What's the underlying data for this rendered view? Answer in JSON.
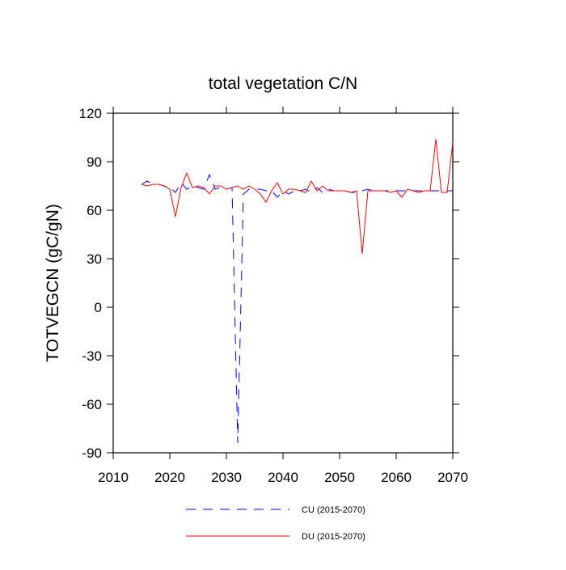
{
  "chart_data": {
    "type": "line",
    "title": "total vegetation C/N",
    "y_label": "TOTVEGCN  (gC/gN)",
    "x": [
      2015,
      2016,
      2017,
      2018,
      2019,
      2020,
      2021,
      2022,
      2023,
      2024,
      2025,
      2026,
      2027,
      2028,
      2029,
      2030,
      2031,
      2032,
      2033,
      2034,
      2035,
      2036,
      2037,
      2038,
      2039,
      2040,
      2041,
      2042,
      2043,
      2044,
      2045,
      2046,
      2047,
      2048,
      2049,
      2050,
      2051,
      2052,
      2053,
      2054,
      2055,
      2056,
      2057,
      2058,
      2059,
      2060,
      2061,
      2062,
      2063,
      2064,
      2065,
      2066,
      2067,
      2068,
      2069,
      2070
    ],
    "series": [
      {
        "name": "CU (2015-2070)",
        "color": "#0000ff",
        "dashed": true,
        "values": [
          76,
          78,
          76,
          76,
          75,
          74,
          71,
          77,
          73,
          75,
          74,
          73,
          82,
          73,
          74,
          73,
          74,
          -84,
          70,
          73,
          73,
          73,
          72,
          72,
          68,
          72,
          70,
          72,
          72,
          73,
          71,
          74,
          71,
          73,
          72,
          72,
          72,
          71,
          71,
          72,
          73,
          72,
          72,
          72,
          72,
          72,
          72,
          72,
          72,
          72,
          72,
          72,
          72,
          72,
          72,
          72
        ]
      },
      {
        "name": "DU (2015-2070)",
        "color": "#ff0000",
        "dashed": false,
        "values": [
          76,
          75,
          76,
          76,
          75,
          73,
          56,
          74,
          83,
          74,
          75,
          74,
          70,
          75,
          75,
          73,
          74,
          75,
          73,
          75,
          73,
          70,
          65,
          72,
          77,
          70,
          73,
          73,
          72,
          71,
          78,
          72,
          75,
          72,
          72,
          72,
          72,
          71,
          72,
          33,
          72,
          72,
          72,
          72,
          71,
          72,
          68,
          73,
          72,
          71,
          72,
          72,
          104,
          71,
          71,
          102
        ]
      }
    ],
    "xlim": [
      2010,
      2070
    ],
    "xticks": [
      2010,
      2020,
      2030,
      2040,
      2050,
      2060,
      2070
    ],
    "ylim": [
      -90,
      120
    ],
    "yticks": [
      -90,
      -60,
      -30,
      0,
      30,
      60,
      90,
      120
    ]
  }
}
